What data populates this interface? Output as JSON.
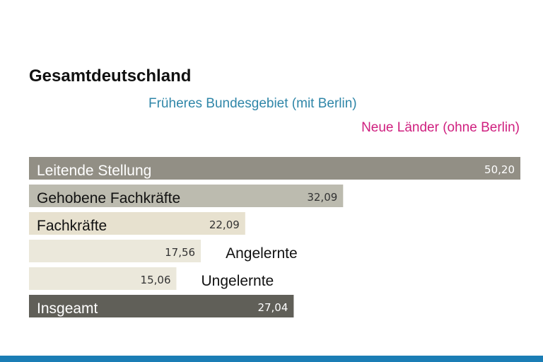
{
  "chart_data": {
    "type": "bar",
    "orientation": "horizontal",
    "title": "Gesamtdeutschland",
    "legend": [
      {
        "label": "Früheres Bundesgebiet (mit Berlin)",
        "color": "#2f86a8"
      },
      {
        "label": "Neue Länder (ohne Berlin)",
        "color": "#cf1f7f"
      }
    ],
    "categories": [
      "Leitende Stellung",
      "Gehobene Fachkräfte",
      "Fachkräfte",
      "Angelernte",
      "Ungelernte",
      "Insgeamt"
    ],
    "values": [
      50.2,
      32.09,
      22.09,
      17.56,
      15.06,
      27.04
    ],
    "value_labels": [
      "50,20",
      "32,09",
      "22,09",
      "17,56",
      "15,06",
      "27,04"
    ],
    "xlim": [
      0,
      50.2
    ],
    "xlabel": "",
    "ylabel": "",
    "bar_colors": [
      "#928f85",
      "#bcbbaf",
      "#e7e1cf",
      "#ebe8db",
      "#ebe8db",
      "#605f58"
    ],
    "label_colors": [
      "#ffffff",
      "#111111",
      "#111111",
      "#111111",
      "#111111",
      "#ffffff"
    ],
    "value_colors": [
      "#ffffff",
      "#333333",
      "#333333",
      "#333333",
      "#333333",
      "#ffffff"
    ],
    "label_position": [
      "inside",
      "inside",
      "inside",
      "outside",
      "outside",
      "inside"
    ]
  },
  "footer": {
    "color": "#1a7db5"
  }
}
